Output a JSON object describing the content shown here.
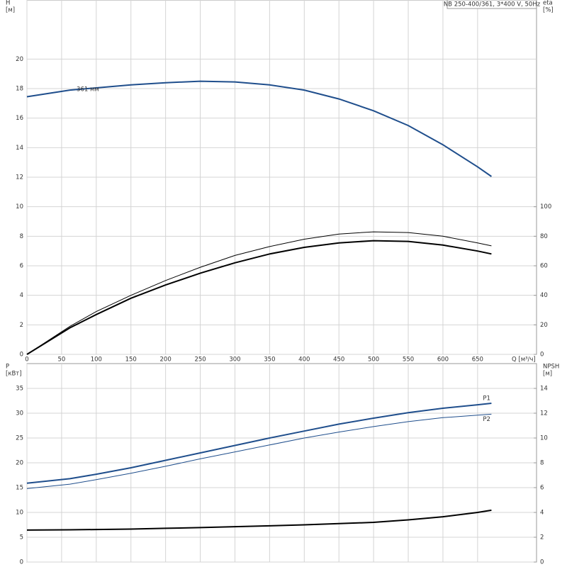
{
  "chart_data": [
    {
      "type": "line",
      "title": "NB 250-400/361, 3*400 V, 50Hz",
      "ylabel": [
        "H",
        "[м]"
      ],
      "y2label": [
        "eta",
        "[%]"
      ],
      "xlabel": "Q [м³/ч]",
      "annotation": "361 мм",
      "grid": true,
      "x": [
        0,
        62,
        100,
        150,
        200,
        250,
        300,
        350,
        400,
        450,
        500,
        550,
        600,
        650,
        670
      ],
      "xlim": [
        0,
        735
      ],
      "xticks": [
        0,
        50,
        100,
        150,
        200,
        250,
        300,
        350,
        400,
        450,
        500,
        550,
        600,
        650
      ],
      "ylim": [
        0,
        24
      ],
      "yticks": [
        0,
        2,
        4,
        6,
        8,
        10,
        12,
        14,
        16,
        18,
        20
      ],
      "y2lim": [
        0,
        240
      ],
      "y2ticks": [
        0,
        20,
        40,
        60,
        80,
        100
      ],
      "series": [
        {
          "color": "#1f4e8c",
          "width": 2,
          "values": [
            17.45,
            17.9,
            18.05,
            18.25,
            18.4,
            18.5,
            18.45,
            18.25,
            17.9,
            17.3,
            16.5,
            15.5,
            14.2,
            12.7,
            12.05
          ]
        },
        {
          "color": "#000000",
          "width": 1,
          "axis": "y2",
          "values": [
            0,
            19,
            29,
            40,
            50,
            59,
            67,
            73,
            78,
            81.5,
            83,
            82.5,
            80,
            75.5,
            73.5
          ]
        },
        {
          "color": "#000000",
          "width": 2,
          "axis": "y2",
          "values": [
            0,
            18,
            27,
            38,
            47,
            55,
            62,
            68,
            72.5,
            75.5,
            77,
            76.5,
            74,
            70,
            68
          ]
        }
      ]
    },
    {
      "type": "line",
      "ylabel": [
        "P",
        "[кВт]"
      ],
      "y2label": [
        "NPSH",
        "[м]"
      ],
      "grid": true,
      "x": [
        0,
        62,
        100,
        150,
        200,
        250,
        300,
        350,
        400,
        450,
        500,
        550,
        600,
        650,
        670
      ],
      "xlim": [
        0,
        735
      ],
      "ylim": [
        0,
        40
      ],
      "yticks": [
        0,
        5,
        10,
        15,
        20,
        25,
        30,
        35
      ],
      "y2lim": [
        0,
        16
      ],
      "y2ticks": [
        0,
        2,
        4,
        6,
        8,
        10,
        12,
        14
      ],
      "series": [
        {
          "name": "P1",
          "color": "#1f4e8c",
          "width": 2,
          "values": [
            15.9,
            16.8,
            17.7,
            19.0,
            20.5,
            22.0,
            23.5,
            25.0,
            26.4,
            27.8,
            29.0,
            30.1,
            31.0,
            31.7,
            32.0
          ]
        },
        {
          "name": "P2",
          "color": "#1f4e8c",
          "width": 1,
          "values": [
            14.8,
            15.7,
            16.6,
            17.9,
            19.3,
            20.8,
            22.2,
            23.6,
            25.0,
            26.2,
            27.3,
            28.3,
            29.1,
            29.6,
            29.8
          ]
        },
        {
          "color": "#000000",
          "width": 2,
          "axis": "y2",
          "values": [
            2.58,
            2.6,
            2.62,
            2.66,
            2.72,
            2.78,
            2.85,
            2.92,
            3.0,
            3.1,
            3.2,
            3.4,
            3.65,
            4.0,
            4.18
          ]
        }
      ]
    }
  ]
}
